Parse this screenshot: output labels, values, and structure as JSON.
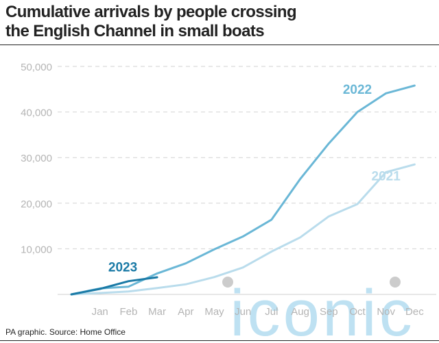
{
  "title_lines": [
    "Cumulative arrivals by people crossing",
    "the English Channel in small boats"
  ],
  "source": "PA graphic. Source: Home Office",
  "watermark": "iconic",
  "colors": {
    "2023": "#1a7aa6",
    "2022": "#6ab7d6",
    "2021": "#b9dcec",
    "grid": "#d2d2d2",
    "axis_text": "#b4b4b4",
    "watermark": "#a9d8ee"
  },
  "chart_data": {
    "type": "line",
    "title": "Cumulative arrivals by people crossing the English Channel in small boats",
    "xlabel": "",
    "ylabel": "",
    "x": [
      "Jan",
      "Feb",
      "Mar",
      "Apr",
      "May",
      "Jun",
      "Jul",
      "Aug",
      "Sep",
      "Oct",
      "Nov",
      "Dec"
    ],
    "ylim": [
      0,
      50000
    ],
    "yticks": [
      10000,
      20000,
      30000,
      40000,
      50000
    ],
    "ytick_labels": [
      "10,000",
      "20,000",
      "30,000",
      "40,000",
      "50,000"
    ],
    "grid": true,
    "legend": "direct labels on lines",
    "series": [
      {
        "name": "2021",
        "label_pos": [
          11,
          25000
        ],
        "points": [
          [
            0,
            0
          ],
          [
            1,
            300
          ],
          [
            2,
            650
          ],
          [
            3,
            1400
          ],
          [
            4,
            2200
          ],
          [
            5,
            3800
          ],
          [
            6,
            5900
          ],
          [
            7,
            9400
          ],
          [
            8,
            12500
          ],
          [
            9,
            17100
          ],
          [
            10,
            19800
          ],
          [
            11,
            26800
          ],
          [
            12,
            28500
          ]
        ]
      },
      {
        "name": "2022",
        "label_pos": [
          10,
          44000
        ],
        "points": [
          [
            0,
            0
          ],
          [
            1,
            1300
          ],
          [
            2,
            1700
          ],
          [
            3,
            4600
          ],
          [
            4,
            6800
          ],
          [
            5,
            9900
          ],
          [
            6,
            12700
          ],
          [
            7,
            16400
          ],
          [
            8,
            25300
          ],
          [
            9,
            33100
          ],
          [
            10,
            40000
          ],
          [
            11,
            44100
          ],
          [
            12,
            45800
          ]
        ]
      },
      {
        "name": "2023",
        "label_pos": [
          1.8,
          5000
        ],
        "points": [
          [
            0,
            0
          ],
          [
            1,
            1200
          ],
          [
            2,
            2900
          ],
          [
            3,
            3750
          ]
        ]
      }
    ]
  }
}
